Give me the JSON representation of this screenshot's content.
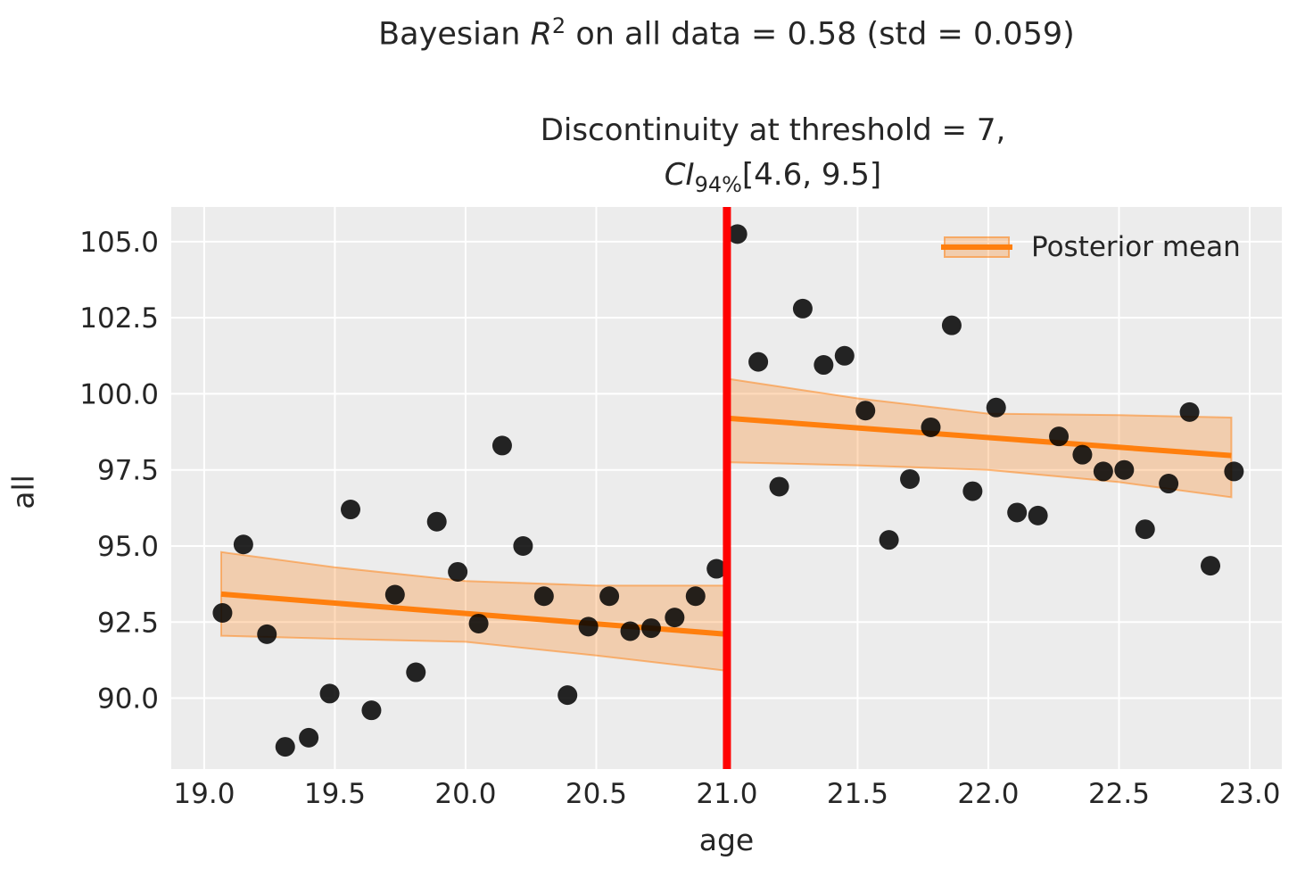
{
  "figure_title": {
    "prefix": "Bayesian ",
    "variable": "R",
    "exponent": "2",
    "suffix": " on all data = 0.58 (std = 0.059)"
  },
  "axes_title": {
    "line1": "Discontinuity at threshold = 7,",
    "ci_label": "CI",
    "ci_subscript": "94%",
    "ci_interval": "[4.6, 9.5]"
  },
  "legend": {
    "items": [
      {
        "label": "Posterior mean",
        "symbol": "orange-line-with-credible-band"
      }
    ]
  },
  "chart_data": {
    "type": "scatter",
    "title": "Bayesian R² on all data = 0.58 (std = 0.059)",
    "subtitle": "Discontinuity at threshold = 7, CI₉₄₅[4.6, 9.5]",
    "xlabel": "age",
    "ylabel": "all",
    "xlim": [
      18.874,
      23.123
    ],
    "ylim": [
      87.67,
      106.14
    ],
    "xticks": [
      19.0,
      19.5,
      20.0,
      20.5,
      21.0,
      21.5,
      22.0,
      22.5,
      23.0
    ],
    "yticks": [
      90.0,
      92.5,
      95.0,
      97.5,
      100.0,
      102.5,
      105.0
    ],
    "grid": true,
    "legend_position": "upper right",
    "threshold": {
      "x": 21.0
    },
    "scatter_points": [
      [
        19.07,
        92.8
      ],
      [
        19.15,
        95.05
      ],
      [
        19.24,
        92.1
      ],
      [
        19.31,
        88.4
      ],
      [
        19.4,
        88.7
      ],
      [
        19.48,
        90.15
      ],
      [
        19.56,
        96.2
      ],
      [
        19.64,
        89.6
      ],
      [
        19.73,
        93.4
      ],
      [
        19.81,
        90.85
      ],
      [
        19.89,
        95.8
      ],
      [
        19.97,
        94.15
      ],
      [
        20.05,
        92.45
      ],
      [
        20.14,
        98.3
      ],
      [
        20.22,
        95.0
      ],
      [
        20.3,
        93.35
      ],
      [
        20.39,
        90.1
      ],
      [
        20.47,
        92.35
      ],
      [
        20.55,
        93.35
      ],
      [
        20.63,
        92.2
      ],
      [
        20.71,
        92.3
      ],
      [
        20.8,
        92.65
      ],
      [
        20.88,
        93.35
      ],
      [
        20.96,
        94.25
      ],
      [
        21.04,
        105.25
      ],
      [
        21.12,
        101.05
      ],
      [
        21.2,
        96.95
      ],
      [
        21.29,
        102.8
      ],
      [
        21.37,
        100.95
      ],
      [
        21.45,
        101.25
      ],
      [
        21.53,
        99.45
      ],
      [
        21.62,
        95.2
      ],
      [
        21.7,
        97.2
      ],
      [
        21.78,
        98.9
      ],
      [
        21.86,
        102.25
      ],
      [
        21.94,
        96.8
      ],
      [
        22.03,
        99.55
      ],
      [
        22.11,
        96.1
      ],
      [
        22.19,
        96.0
      ],
      [
        22.27,
        98.6
      ],
      [
        22.36,
        98.0
      ],
      [
        22.44,
        97.45
      ],
      [
        22.52,
        97.5
      ],
      [
        22.6,
        95.55
      ],
      [
        22.69,
        97.05
      ],
      [
        22.77,
        99.4
      ],
      [
        22.85,
        94.35
      ],
      [
        22.94,
        97.45
      ]
    ],
    "posterior_mean_segments": [
      {
        "name": "pre-threshold",
        "x": [
          19.065,
          21.0
        ],
        "y": [
          93.42,
          92.1
        ],
        "band_x": [
          19.065,
          19.5,
          20.0,
          20.5,
          21.0
        ],
        "band_upper": [
          94.8,
          94.3,
          93.85,
          93.7,
          93.7
        ],
        "band_lower": [
          92.05,
          91.95,
          91.85,
          91.4,
          90.9
        ]
      },
      {
        "name": "post-threshold",
        "x": [
          21.0,
          22.93
        ],
        "y": [
          99.2,
          97.97
        ],
        "band_x": [
          21.0,
          21.5,
          22.0,
          22.5,
          22.93
        ],
        "band_upper": [
          100.5,
          99.85,
          99.35,
          99.3,
          99.22
        ],
        "band_lower": [
          97.75,
          97.65,
          97.5,
          97.1,
          96.6
        ]
      }
    ],
    "colors": {
      "posterior_mean": "#ff7f0e",
      "band_fill": "rgba(255,127,14,0.28)",
      "band_edge": "rgba(255,127,14,0.5)",
      "threshold_line": "#ff0000",
      "points": "#000000",
      "plot_background": "#ececec",
      "gridline": "#ffffff",
      "text": "#262626"
    }
  }
}
